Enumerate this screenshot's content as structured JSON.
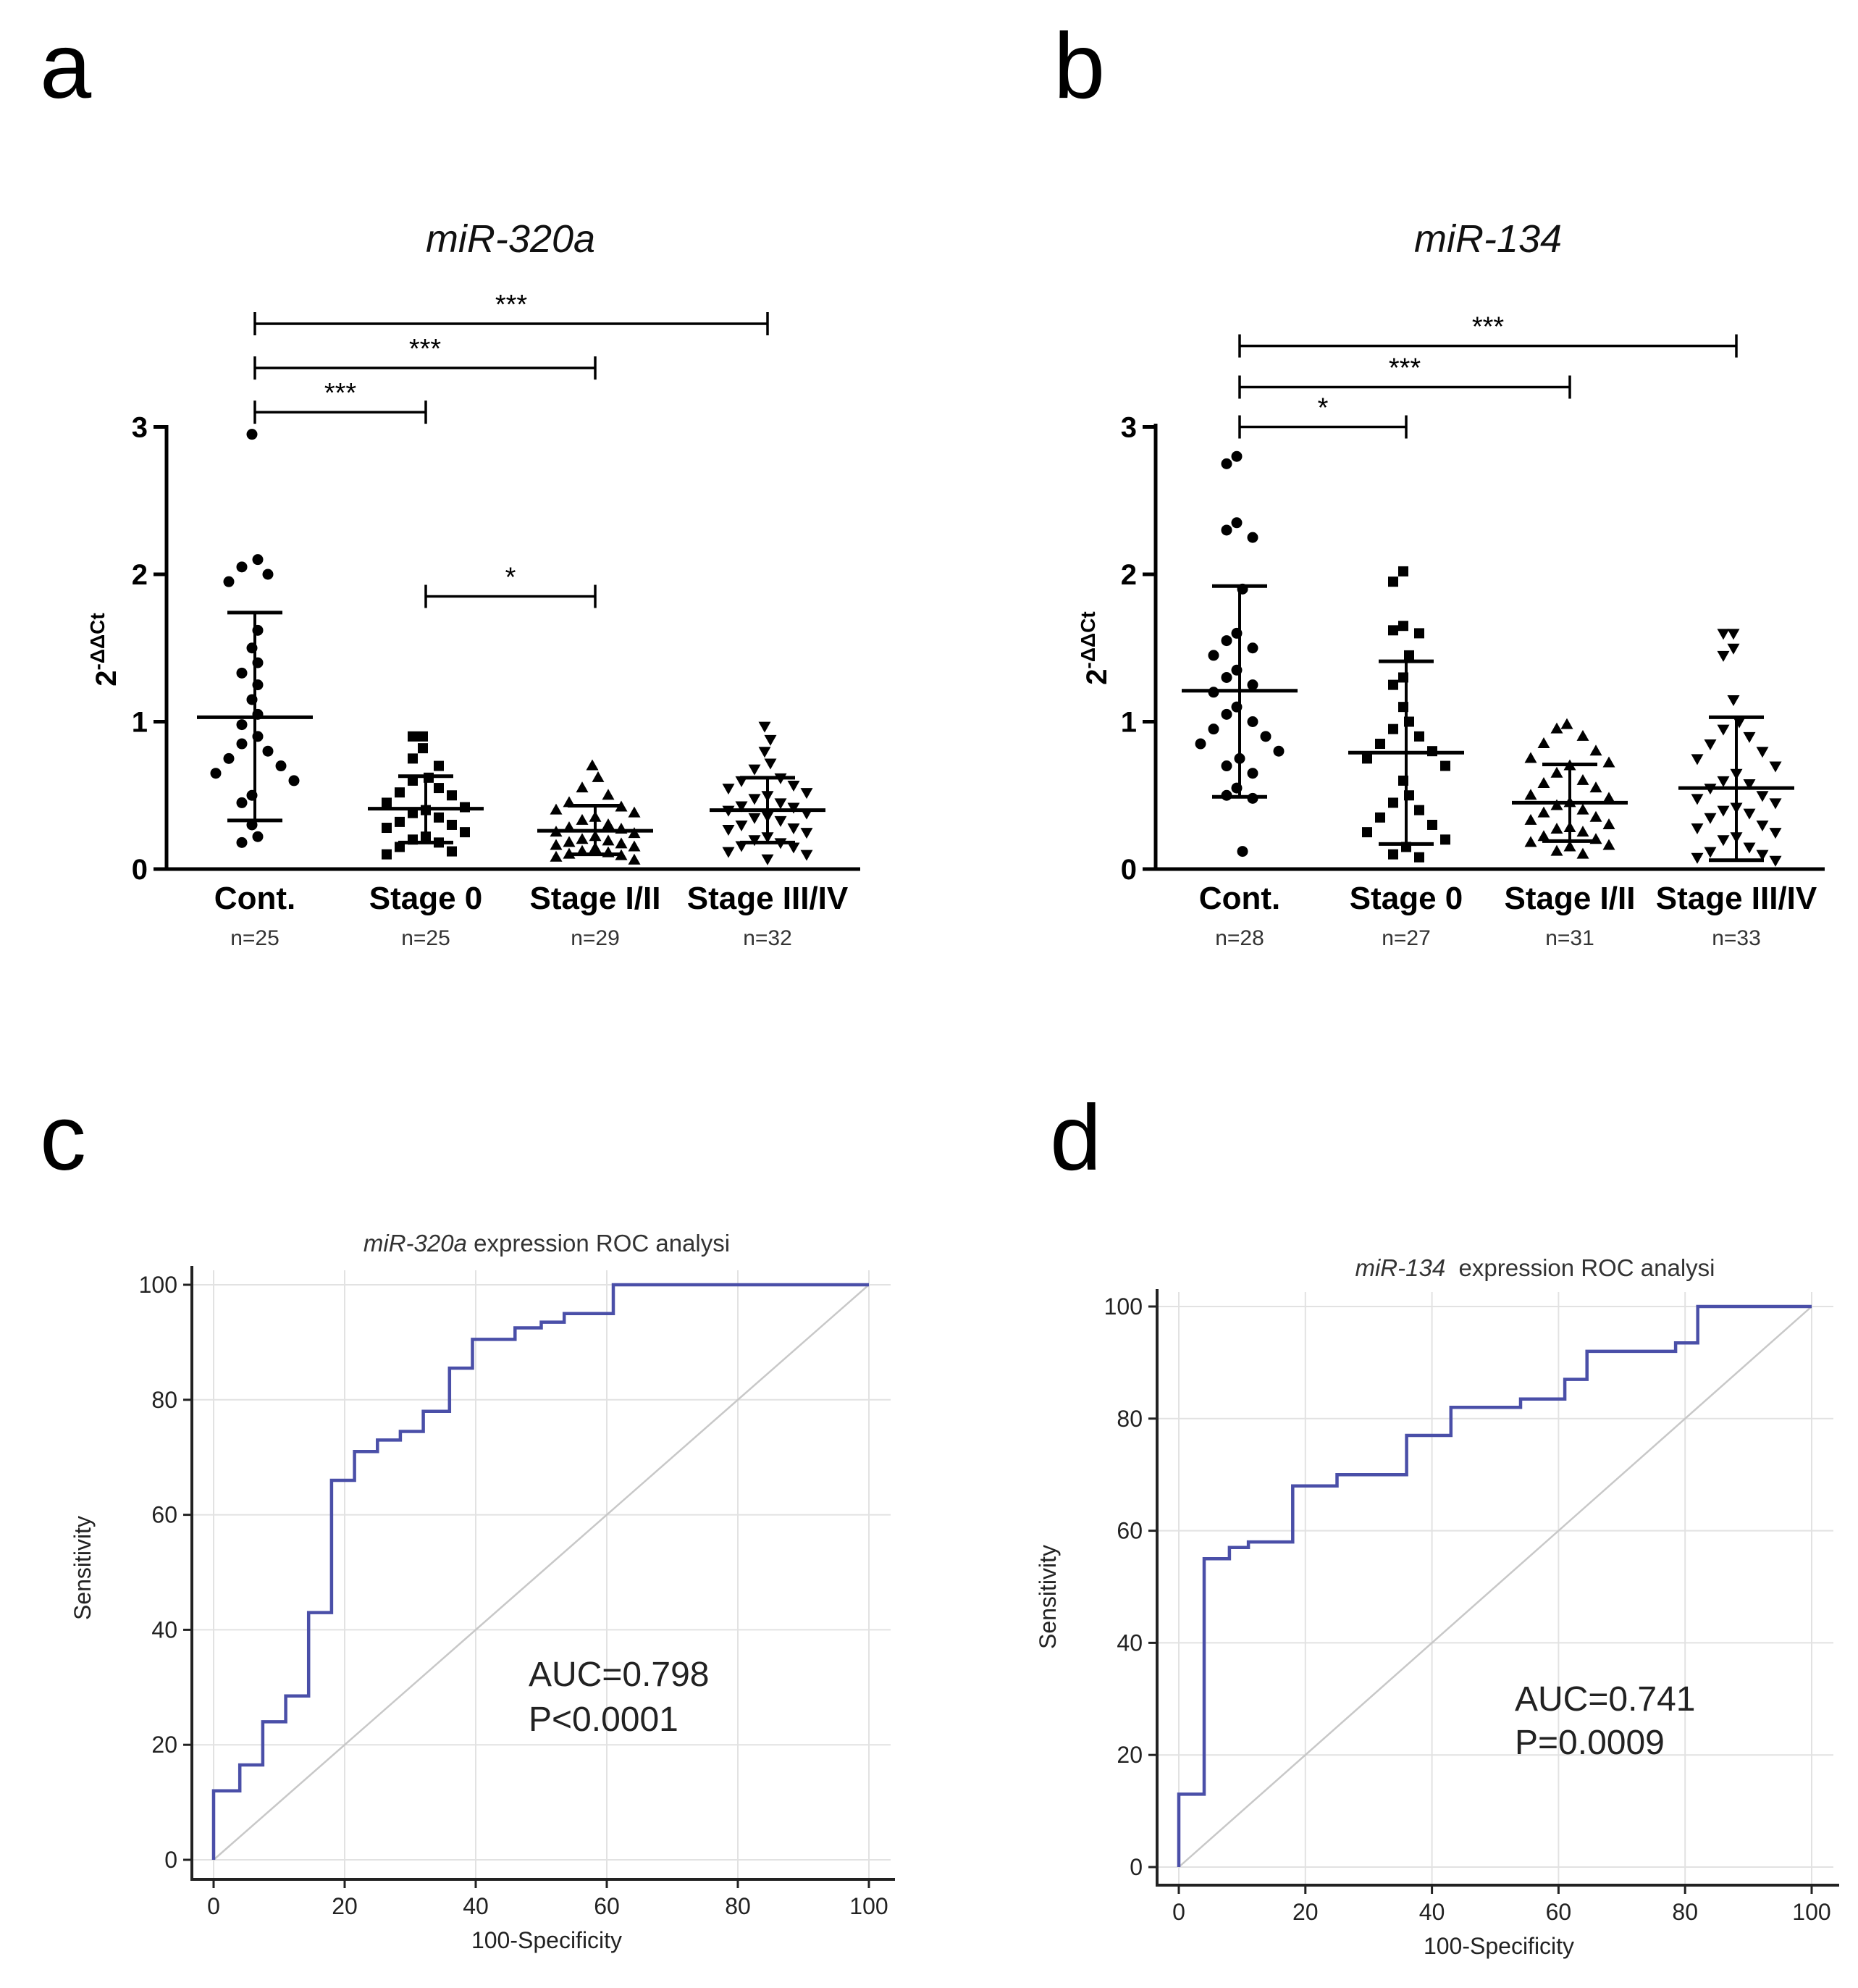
{
  "panels": [
    {
      "letter": "a",
      "chart_data": {
        "type": "scatter",
        "title": "miR-320a",
        "ylabel": "2-ΔΔCt",
        "ylabel_base": "2",
        "ylabel_sup": "-ΔΔCt",
        "ylim": [
          0,
          3
        ],
        "yticks": [
          "0",
          "1",
          "2",
          "3"
        ],
        "categories": [
          "Cont.",
          "Stage 0",
          "Stage I/II",
          "Stage III/IV"
        ],
        "n_labels": [
          "n=25",
          "n=25",
          "n=29",
          "n=32"
        ],
        "markers": [
          "circle",
          "square",
          "triangle-up",
          "triangle-down"
        ],
        "mean": [
          1.03,
          0.41,
          0.26,
          0.4
        ],
        "sd_low": [
          0.33,
          0.18,
          0.1,
          0.18
        ],
        "sd_high": [
          1.74,
          0.63,
          0.43,
          0.62
        ],
        "points": [
          [
            2.95,
            2.1,
            2.05,
            2.0,
            1.95,
            1.62,
            1.5,
            1.4,
            1.33,
            1.25,
            1.15,
            1.05,
            0.98,
            0.9,
            0.85,
            0.8,
            0.75,
            0.7,
            0.65,
            0.6,
            0.5,
            0.45,
            0.3,
            0.22,
            0.18
          ],
          [
            0.9,
            0.9,
            0.82,
            0.75,
            0.7,
            0.62,
            0.6,
            0.55,
            0.52,
            0.5,
            0.45,
            0.42,
            0.4,
            0.38,
            0.35,
            0.32,
            0.3,
            0.28,
            0.25,
            0.22,
            0.2,
            0.18,
            0.15,
            0.12,
            0.1
          ],
          [
            0.7,
            0.62,
            0.55,
            0.5,
            0.45,
            0.42,
            0.4,
            0.38,
            0.35,
            0.33,
            0.3,
            0.28,
            0.27,
            0.25,
            0.24,
            0.22,
            0.2,
            0.19,
            0.18,
            0.17,
            0.16,
            0.15,
            0.14,
            0.12,
            0.11,
            0.1,
            0.09,
            0.08,
            0.06
          ],
          [
            0.97,
            0.88,
            0.8,
            0.72,
            0.68,
            0.62,
            0.6,
            0.57,
            0.55,
            0.52,
            0.5,
            0.48,
            0.45,
            0.43,
            0.42,
            0.4,
            0.38,
            0.36,
            0.35,
            0.33,
            0.3,
            0.28,
            0.27,
            0.25,
            0.22,
            0.2,
            0.18,
            0.16,
            0.15,
            0.12,
            0.1,
            0.07
          ]
        ],
        "significance": [
          {
            "from": 0,
            "to": 3,
            "level": 3.7,
            "label": "***"
          },
          {
            "from": 0,
            "to": 2,
            "level": 3.4,
            "label": "***"
          },
          {
            "from": 0,
            "to": 1,
            "level": 3.1,
            "label": "***"
          },
          {
            "from": 1,
            "to": 2,
            "level": 1.85,
            "label": "*"
          }
        ]
      }
    },
    {
      "letter": "b",
      "chart_data": {
        "type": "scatter",
        "title": "miR-134",
        "ylabel": "2-ΔΔCt",
        "ylabel_base": "2",
        "ylabel_sup": "-ΔΔCt",
        "ylim": [
          0,
          3
        ],
        "yticks": [
          "0",
          "1",
          "2",
          "3"
        ],
        "categories": [
          "Cont.",
          "Stage 0",
          "Stage I/II",
          "Stage III/IV"
        ],
        "n_labels": [
          "n=28",
          "n=27",
          "n=31",
          "n=33"
        ],
        "markers": [
          "circle",
          "square",
          "triangle-up",
          "triangle-down"
        ],
        "mean": [
          1.21,
          0.79,
          0.45,
          0.55
        ],
        "sd_low": [
          0.49,
          0.17,
          0.19,
          0.06
        ],
        "sd_high": [
          1.92,
          1.41,
          0.71,
          1.03
        ],
        "points": [
          [
            2.8,
            2.75,
            2.35,
            2.3,
            2.25,
            1.9,
            1.6,
            1.55,
            1.5,
            1.45,
            1.35,
            1.3,
            1.25,
            1.2,
            1.1,
            1.05,
            1.0,
            0.95,
            0.9,
            0.85,
            0.8,
            0.75,
            0.7,
            0.65,
            0.55,
            0.5,
            0.48,
            0.12
          ],
          [
            2.02,
            1.95,
            1.65,
            1.62,
            1.6,
            1.45,
            1.3,
            1.25,
            1.1,
            1.0,
            0.95,
            0.9,
            0.85,
            0.8,
            0.75,
            0.7,
            0.6,
            0.5,
            0.45,
            0.4,
            0.35,
            0.3,
            0.25,
            0.2,
            0.15,
            0.1,
            0.08
          ],
          [
            0.98,
            0.95,
            0.9,
            0.85,
            0.8,
            0.75,
            0.72,
            0.7,
            0.65,
            0.6,
            0.58,
            0.55,
            0.5,
            0.48,
            0.45,
            0.43,
            0.4,
            0.38,
            0.35,
            0.33,
            0.3,
            0.28,
            0.27,
            0.25,
            0.22,
            0.2,
            0.18,
            0.16,
            0.15,
            0.12,
            0.1
          ],
          [
            1.6,
            1.6,
            1.5,
            1.45,
            1.15,
            1.0,
            0.95,
            0.9,
            0.85,
            0.8,
            0.75,
            0.7,
            0.65,
            0.6,
            0.58,
            0.55,
            0.5,
            0.48,
            0.45,
            0.42,
            0.4,
            0.38,
            0.35,
            0.3,
            0.28,
            0.25,
            0.22,
            0.2,
            0.15,
            0.12,
            0.1,
            0.08,
            0.06
          ]
        ],
        "significance": [
          {
            "from": 0,
            "to": 3,
            "level": 3.55,
            "label": "***"
          },
          {
            "from": 0,
            "to": 2,
            "level": 3.27,
            "label": "***"
          },
          {
            "from": 0,
            "to": 1,
            "level": 3.0,
            "label": "*"
          }
        ]
      }
    },
    {
      "letter": "c",
      "chart_data": {
        "type": "line",
        "title_italic": "miR-320a",
        "title_rest": " expression ROC analysi",
        "xlabel": "100-Specificity",
        "ylabel": "Sensitivity",
        "xlim": [
          0,
          100
        ],
        "ylim": [
          0,
          100
        ],
        "xticks": [
          "0",
          "20",
          "40",
          "60",
          "80",
          "100"
        ],
        "yticks": [
          "0",
          "20",
          "40",
          "60",
          "80",
          "100"
        ],
        "auc_text": "AUC=0.798",
        "p_text": "P<0.0001",
        "curve": [
          [
            0,
            0
          ],
          [
            0,
            12
          ],
          [
            4,
            12
          ],
          [
            4,
            16.5
          ],
          [
            7.5,
            16.5
          ],
          [
            7.5,
            24
          ],
          [
            11,
            24
          ],
          [
            11,
            28.5
          ],
          [
            14.5,
            28.5
          ],
          [
            14.5,
            43
          ],
          [
            18,
            43
          ],
          [
            18,
            66
          ],
          [
            21.5,
            66
          ],
          [
            21.5,
            71
          ],
          [
            25,
            71
          ],
          [
            25,
            73
          ],
          [
            28.5,
            73
          ],
          [
            28.5,
            74.5
          ],
          [
            32,
            74.5
          ],
          [
            32,
            78
          ],
          [
            36,
            78
          ],
          [
            36,
            85.5
          ],
          [
            39.5,
            85.5
          ],
          [
            39.5,
            90.5
          ],
          [
            46,
            90.5
          ],
          [
            46,
            92.5
          ],
          [
            50,
            92.5
          ],
          [
            50,
            93.5
          ],
          [
            53.5,
            93.5
          ],
          [
            53.5,
            95
          ],
          [
            61,
            95
          ],
          [
            61,
            100
          ],
          [
            100,
            100
          ]
        ]
      }
    },
    {
      "letter": "d",
      "chart_data": {
        "type": "line",
        "title_italic": "miR-134",
        "title_rest": "  expression ROC analysi",
        "xlabel": "100-Specificity",
        "ylabel": "Sensitivity",
        "xlim": [
          0,
          100
        ],
        "ylim": [
          0,
          100
        ],
        "xticks": [
          "0",
          "20",
          "40",
          "60",
          "80",
          "100"
        ],
        "yticks": [
          "0",
          "20",
          "40",
          "60",
          "80",
          "100"
        ],
        "auc_text": "AUC=0.741",
        "p_text": "P=0.0009",
        "curve": [
          [
            0,
            0
          ],
          [
            0,
            13
          ],
          [
            4,
            13
          ],
          [
            4,
            55
          ],
          [
            8,
            55
          ],
          [
            8,
            57
          ],
          [
            11,
            57
          ],
          [
            11,
            58
          ],
          [
            18,
            58
          ],
          [
            18,
            68
          ],
          [
            25,
            68
          ],
          [
            25,
            70
          ],
          [
            36,
            70
          ],
          [
            36,
            77
          ],
          [
            43,
            77
          ],
          [
            43,
            82
          ],
          [
            54,
            82
          ],
          [
            54,
            83.5
          ],
          [
            61,
            83.5
          ],
          [
            61,
            87
          ],
          [
            64.5,
            87
          ],
          [
            64.5,
            92
          ],
          [
            78.5,
            92
          ],
          [
            78.5,
            93.5
          ],
          [
            82,
            93.5
          ],
          [
            82,
            100
          ],
          [
            100,
            100
          ]
        ]
      }
    }
  ]
}
